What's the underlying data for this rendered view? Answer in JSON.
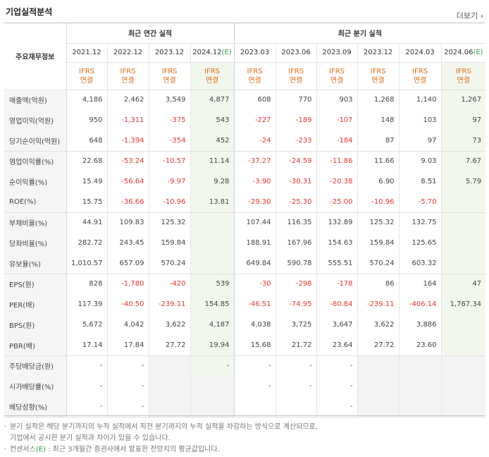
{
  "title": "기업실적분석",
  "more_label": "더보기",
  "corner_label": "주요재무정보",
  "group_annual": "최근 연간 실적",
  "group_quarter": "최근 분기 실적",
  "annual_periods": [
    "2021.12",
    "2022.12",
    "2023.12",
    "2024.12"
  ],
  "estimate_mark": "(E)",
  "quarter_periods": [
    "2023.03",
    "2023.06",
    "2023.09",
    "2023.12",
    "2024.03",
    "2024.06"
  ],
  "ifrs_label": "IFRS",
  "consol_label": "연결",
  "colors": {
    "negative": "#e8352f",
    "ifrs": "#e26b17",
    "estimate": "#3aa04a"
  },
  "rows": [
    {
      "label": "매출액(억원)",
      "values": [
        "4,186",
        "2,462",
        "3,549",
        "4,877",
        "608",
        "770",
        "903",
        "1,268",
        "1,140",
        "1,267"
      ]
    },
    {
      "label": "영업이익(억원)",
      "values": [
        "950",
        "-1,311",
        "-375",
        "543",
        "-227",
        "-189",
        "-107",
        "148",
        "103",
        "97"
      ]
    },
    {
      "label": "당기순이익(억원)",
      "values": [
        "648",
        "-1,394",
        "-354",
        "452",
        "-24",
        "-233",
        "-184",
        "87",
        "97",
        "73"
      ]
    },
    {
      "label": "영업이익률(%)",
      "values": [
        "22.68",
        "-53.24",
        "-10.57",
        "11.14",
        "-37.27",
        "-24.59",
        "-11.86",
        "11.66",
        "9.03",
        "7.67"
      ]
    },
    {
      "label": "순이익률(%)",
      "values": [
        "15.49",
        "-56.64",
        "-9.97",
        "9.28",
        "-3.90",
        "-30.31",
        "-20.38",
        "6.90",
        "8.51",
        "5.79"
      ]
    },
    {
      "label": "ROE(%)",
      "values": [
        "15.75",
        "-36.66",
        "-10.96",
        "13.81",
        "-29.30",
        "-25.30",
        "-25.00",
        "-10.96",
        "-5.70",
        ""
      ]
    },
    {
      "label": "부채비율(%)",
      "values": [
        "44.91",
        "109.83",
        "125.32",
        "",
        "107.44",
        "116.35",
        "132.89",
        "125.32",
        "132.75",
        ""
      ]
    },
    {
      "label": "당좌비율(%)",
      "values": [
        "282.72",
        "243.45",
        "159.84",
        "",
        "188.91",
        "167.96",
        "154.63",
        "159.84",
        "125.65",
        ""
      ]
    },
    {
      "label": "유보율(%)",
      "values": [
        "1,010.57",
        "657.09",
        "570.24",
        "",
        "649.84",
        "590.78",
        "555.51",
        "570.24",
        "603.32",
        ""
      ]
    },
    {
      "label": "EPS(원)",
      "values": [
        "828",
        "-1,780",
        "-420",
        "539",
        "-30",
        "-298",
        "-178",
        "86",
        "164",
        "47"
      ]
    },
    {
      "label": "PER(배)",
      "values": [
        "117.39",
        "-40.50",
        "-239.11",
        "154.85",
        "-46.51",
        "-74.95",
        "-80.84",
        "-239.11",
        "-406.14",
        "1,767.34"
      ]
    },
    {
      "label": "BPS(원)",
      "values": [
        "5,672",
        "4,042",
        "3,622",
        "4,187",
        "4,038",
        "3,725",
        "3,647",
        "3,622",
        "3,886",
        ""
      ]
    },
    {
      "label": "PBR(배)",
      "values": [
        "17.14",
        "17.84",
        "27.72",
        "19.94",
        "15.68",
        "21.72",
        "23.64",
        "27.72",
        "23.60",
        ""
      ]
    },
    {
      "label": "주당배당금(원)",
      "values": [
        "-",
        "-",
        "",
        "-",
        "-",
        "-",
        "-",
        "",
        "",
        ""
      ]
    },
    {
      "label": "시가배당률(%)",
      "values": [
        "-",
        "-",
        "",
        "",
        "-",
        "-",
        "-",
        "",
        "",
        ""
      ]
    },
    {
      "label": "배당성향(%)",
      "values": [
        "-",
        "-",
        "",
        "",
        "",
        "",
        "-",
        "",
        "",
        ""
      ]
    }
  ],
  "notes": [
    "분기 실적은 해당 분기까지의 누적 실적에서 직전 분기까지의 누적 실적을 차감하는 방식으로 계산되므로,",
    "기업에서 공시한 분기 실적과 차이가 있을 수 있습니다.",
    "컨센서스(E) : 최근 3개월간 증권사에서 발표한 전망치의 평균값입니다."
  ]
}
